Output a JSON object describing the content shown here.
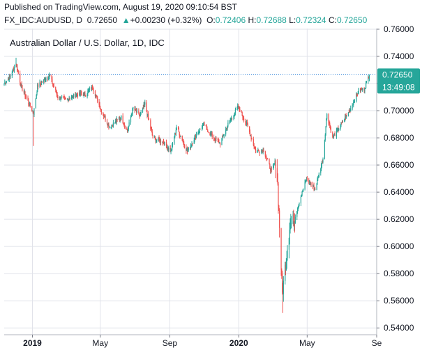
{
  "header": {
    "published": "Published on TradingView.com, August 19, 2020 09:10:54 BST",
    "symbol": "FX_IDC:AUDUSD, D",
    "last": "0.72650",
    "change_arrow": "▲",
    "change": "+0.00230 (+0.32%)",
    "o_label": "O:",
    "o_value": "0.72406",
    "h_label": "H:",
    "h_value": "0.72688",
    "l_label": "L:",
    "l_value": "0.72324",
    "c_label": "C:",
    "c_value": "0.72650"
  },
  "chart_data": {
    "type": "candlestick",
    "title": "Australian Dollar / U.S. Dollar, 1D, IDC",
    "ylim": [
      0.535,
      0.7605
    ],
    "yticks": [
      "0.76000",
      "0.74000",
      "0.72000",
      "0.70000",
      "0.68000",
      "0.66000",
      "0.64000",
      "0.62000",
      "0.60000",
      "0.58000",
      "0.56000",
      "0.54000"
    ],
    "x_range": [
      "2018-11-12",
      "2020-09-01"
    ],
    "xticks": [
      {
        "label": "2019",
        "date": "2019-01-01",
        "bold": true
      },
      {
        "label": "May",
        "date": "2019-05-01",
        "bold": false
      },
      {
        "label": "Sep",
        "date": "2019-09-01",
        "bold": false
      },
      {
        "label": "2020",
        "date": "2020-01-01",
        "bold": true
      },
      {
        "label": "May",
        "date": "2020-05-01",
        "bold": false
      },
      {
        "label": "Se",
        "date": "2020-09-01",
        "bold": false
      }
    ],
    "last_price": "0.72650",
    "countdown": "13:49:08",
    "colors": {
      "up": "#26a69a",
      "down": "#ef5350",
      "last": "#26a69a",
      "line": "#1976d2",
      "grid": "#e1e3ea"
    },
    "anchors": [
      [
        "2018-11-12",
        0.72
      ],
      [
        "2018-11-22",
        0.725
      ],
      [
        "2018-12-03",
        0.735
      ],
      [
        "2018-12-12",
        0.718
      ],
      [
        "2018-12-26",
        0.705
      ],
      [
        "2019-01-03",
        0.698
      ],
      [
        "2019-01-10",
        0.718
      ],
      [
        "2019-01-31",
        0.726
      ],
      [
        "2019-02-15",
        0.71
      ],
      [
        "2019-03-01",
        0.708
      ],
      [
        "2019-03-20",
        0.712
      ],
      [
        "2019-04-05",
        0.712
      ],
      [
        "2019-04-17",
        0.718
      ],
      [
        "2019-05-01",
        0.702
      ],
      [
        "2019-05-17",
        0.688
      ],
      [
        "2019-06-07",
        0.695
      ],
      [
        "2019-06-18",
        0.685
      ],
      [
        "2019-06-28",
        0.702
      ],
      [
        "2019-07-10",
        0.696
      ],
      [
        "2019-07-19",
        0.705
      ],
      [
        "2019-08-02",
        0.68
      ],
      [
        "2019-08-20",
        0.677
      ],
      [
        "2019-09-03",
        0.67
      ],
      [
        "2019-09-13",
        0.688
      ],
      [
        "2019-10-02",
        0.67
      ],
      [
        "2019-10-17",
        0.682
      ],
      [
        "2019-10-31",
        0.69
      ],
      [
        "2019-11-13",
        0.682
      ],
      [
        "2019-11-29",
        0.676
      ],
      [
        "2019-12-13",
        0.69
      ],
      [
        "2019-12-31",
        0.703
      ],
      [
        "2020-01-17",
        0.688
      ],
      [
        "2020-01-31",
        0.67
      ],
      [
        "2020-02-14",
        0.671
      ],
      [
        "2020-02-28",
        0.655
      ],
      [
        "2020-03-06",
        0.663
      ],
      [
        "2020-03-10",
        0.645
      ],
      [
        "2020-03-18",
        0.565
      ],
      [
        "2020-03-24",
        0.588
      ],
      [
        "2020-03-31",
        0.615
      ],
      [
        "2020-04-08",
        0.62
      ],
      [
        "2020-04-17",
        0.633
      ],
      [
        "2020-04-30",
        0.65
      ],
      [
        "2020-05-15",
        0.642
      ],
      [
        "2020-05-29",
        0.665
      ],
      [
        "2020-06-05",
        0.698
      ],
      [
        "2020-06-15",
        0.68
      ],
      [
        "2020-06-30",
        0.69
      ],
      [
        "2020-07-15",
        0.7
      ],
      [
        "2020-07-31",
        0.715
      ],
      [
        "2020-08-10",
        0.716
      ],
      [
        "2020-08-19",
        0.7265
      ]
    ],
    "spikes": [
      {
        "date": "2018-12-03",
        "high": 0.739
      },
      {
        "date": "2019-01-03",
        "low": 0.674
      },
      {
        "date": "2020-03-19",
        "low": 0.551
      }
    ]
  }
}
